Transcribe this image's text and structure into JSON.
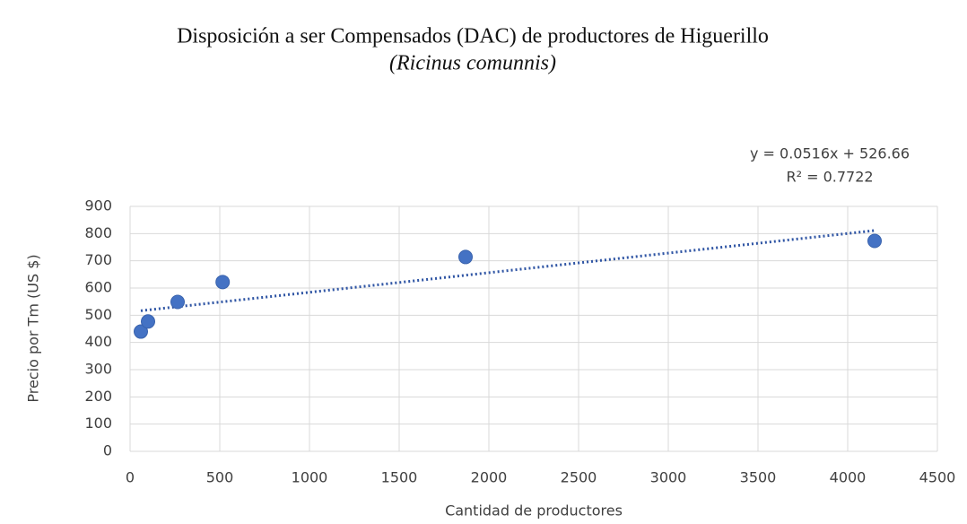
{
  "chart_data": {
    "type": "scatter",
    "title": "Disposición a ser Compensados (DAC) de productores de Higuerillo",
    "subtitle": "(Ricinus comunnis)",
    "x_label": "Cantidad de productores",
    "y_label": "Precio  por Tm (US $)",
    "x": [
      60,
      100,
      265,
      516,
      1870,
      4150
    ],
    "values": [
      440,
      477,
      549,
      622,
      714,
      773
    ],
    "color": "#4472c4",
    "trendline_color": "#2f55a4",
    "trendline_equation": "y = 0.0516x + 526.66",
    "trendline_r2": "R² = 0.7722",
    "xlim": [
      0,
      4500
    ],
    "xticks": [
      0,
      500,
      1000,
      1500,
      2000,
      2500,
      3000,
      3500,
      4000,
      4500
    ],
    "ylim": [
      0,
      900
    ],
    "yticks": [
      0,
      100,
      200,
      300,
      400,
      500,
      600,
      700,
      800,
      900
    ],
    "grid": true
  }
}
